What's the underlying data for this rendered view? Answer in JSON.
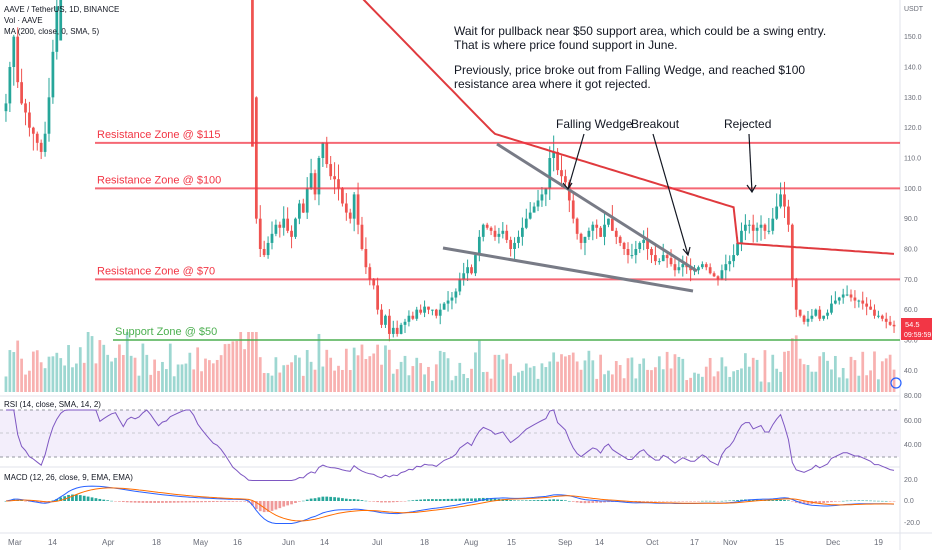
{
  "legend": {
    "symbol": "AAVE / TetherUS, 1D, BINANCE",
    "volume": "Vol · AAVE",
    "ma": "MA (200, close, 0, SMA, 5)",
    "rsi": "RSI (14, close, SMA, 14, 2)",
    "macd": "MACD (12, 26, close, 9, EMA, EMA)"
  },
  "price_axis": {
    "unit": "USDT",
    "ticks": [
      "160.0",
      "150.0",
      "140.0",
      "130.0",
      "120.0",
      "110.0",
      "100.0",
      "90.0",
      "80.0",
      "70.0",
      "60.0",
      "50.0",
      "40.0"
    ],
    "last_price": "54.5",
    "countdown": "09:59:59",
    "last_color": "#f23645"
  },
  "rsi_axis": {
    "ticks": [
      "80.00",
      "60.00",
      "40.00"
    ]
  },
  "macd_axis": {
    "ticks": [
      "20.0",
      "0.0",
      "-20.0"
    ]
  },
  "x_axis": {
    "labels": [
      "Mar",
      "14",
      "Apr",
      "18",
      "May",
      "16",
      "Jun",
      "14",
      "Jul",
      "18",
      "Aug",
      "15",
      "Sep",
      "14",
      "Oct",
      "17",
      "Nov",
      "15",
      "Dec",
      "19"
    ]
  },
  "zones": [
    {
      "label": "Resistance Zone @ $115",
      "level": 115,
      "color": "#f23645"
    },
    {
      "label": "Resistance Zone @ $100",
      "level": 100,
      "color": "#f23645"
    },
    {
      "label": "Resistance Zone @ $70",
      "level": 70,
      "color": "#f23645"
    },
    {
      "label": "Support Zone @ $50",
      "level": 50,
      "color": "#4caf50"
    }
  ],
  "annotations": {
    "falling_wedge": "Falling Wedge",
    "breakout": "Breakout",
    "rejected": "Rejected",
    "note_line1": "Wait for pullback near $50 support area, which could be a swing entry.",
    "note_line2": "That is where price found support in June.",
    "note_line3": "Previously, price broke out from Falling Wedge, and reached $100",
    "note_line4": "resistance area where it got rejected."
  },
  "chart_data": {
    "type": "candlestick",
    "interval": "1D",
    "y_range": [
      40,
      165
    ],
    "ma_color": "#e03a3e",
    "up_color": "#26a69a",
    "down_color": "#ef5350",
    "close_series": [
      128,
      140,
      150,
      135,
      128,
      125,
      120,
      118,
      115,
      112,
      118,
      130,
      145,
      160,
      175,
      185,
      200,
      210,
      230,
      250,
      240,
      300,
      360,
      330,
      300,
      320,
      340,
      360,
      370,
      350,
      330,
      380,
      400,
      395,
      410,
      450,
      500,
      480,
      460,
      440,
      470,
      480,
      520,
      540,
      560,
      580,
      600,
      610,
      590,
      560,
      540,
      520,
      500,
      480,
      470,
      450,
      420,
      380,
      330,
      300,
      260,
      230,
      180,
      130,
      90,
      80,
      78,
      82,
      85,
      88,
      87,
      90,
      86,
      84,
      90,
      95,
      92,
      100,
      105,
      98,
      110,
      115,
      108,
      104,
      103,
      100,
      95,
      92,
      90,
      98,
      88,
      80,
      74,
      70,
      68,
      60,
      55,
      58,
      52,
      54,
      52,
      55,
      56,
      58,
      57,
      60,
      59,
      61,
      60,
      60,
      58,
      60,
      62,
      63,
      64,
      66,
      70,
      72,
      74,
      72,
      78,
      84,
      88,
      87,
      86,
      84,
      85,
      86,
      83,
      80,
      82,
      84,
      87,
      90,
      92,
      94,
      96,
      98,
      100,
      110,
      112,
      106,
      104,
      102,
      96,
      90,
      85,
      82,
      84,
      86,
      88,
      87,
      84,
      88,
      90,
      86,
      84,
      82,
      80,
      78,
      78,
      80,
      82,
      83,
      80,
      78,
      76,
      76,
      78,
      77,
      75,
      73,
      74,
      75,
      74,
      73,
      73,
      74,
      75,
      74,
      72,
      71,
      70,
      73,
      75,
      76,
      78,
      82,
      86,
      88,
      88,
      86,
      87,
      88,
      86,
      86,
      90,
      94,
      98,
      94,
      88,
      70,
      60,
      58,
      56,
      57,
      58,
      60,
      57,
      58,
      59,
      62,
      63,
      64,
      65,
      65,
      64,
      63,
      63,
      62,
      61,
      60,
      58,
      58,
      57,
      56,
      55,
      54.5
    ]
  }
}
